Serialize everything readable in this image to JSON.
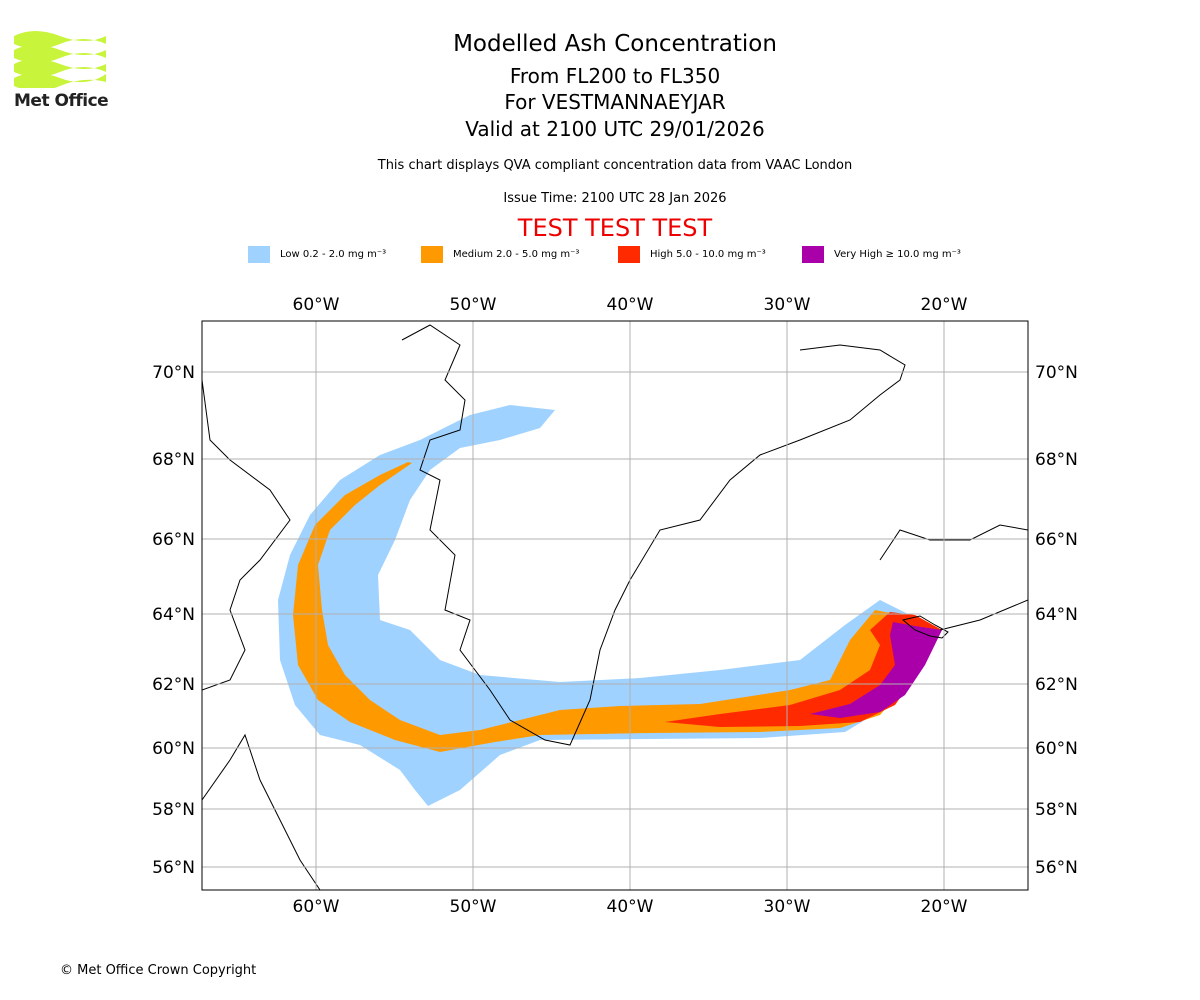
{
  "logo": {
    "text": "Met Office",
    "color": "#c8f53c"
  },
  "header": {
    "title": "Modelled Ash Concentration",
    "levels": "From FL200 to FL350",
    "volcano": "For VESTMANNAEYJAR",
    "valid": "Valid at 2100 UTC 29/01/2026",
    "description": "This chart displays QVA compliant concentration data from VAAC London",
    "issue_time": "Issue Time: 2100 UTC 28 Jan 2026",
    "test_banner": "TEST TEST TEST"
  },
  "legend": [
    {
      "label": "Low 0.2 - 2.0 mg m⁻³",
      "color": "#a0d2ff"
    },
    {
      "label": "Medium 2.0 - 5.0 mg m⁻³",
      "color": "#ff9900"
    },
    {
      "label": "High 5.0 - 10.0 mg m⁻³",
      "color": "#ff2a00"
    },
    {
      "label": "Very High ≥ 10.0 mg m⁻³",
      "color": "#aa00aa"
    }
  ],
  "map": {
    "lon_labels": [
      "60°W",
      "50°W",
      "40°W",
      "30°W",
      "20°W"
    ],
    "lat_labels": [
      "70°N",
      "68°N",
      "66°N",
      "64°N",
      "62°N",
      "60°N",
      "58°N",
      "56°N"
    ]
  },
  "footer": {
    "copyright": "© Met Office Crown Copyright"
  }
}
